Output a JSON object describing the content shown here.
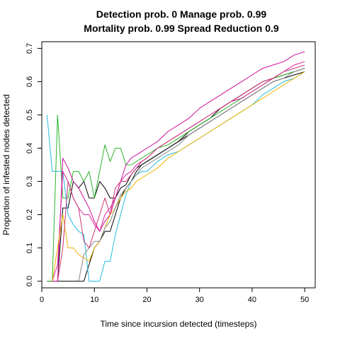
{
  "chart_data": {
    "type": "line",
    "title": [
      "Detection prob. 0 Manage prob. 0.99",
      "Mortality prob. 0.99 Spread Reduction 0.9"
    ],
    "xlabel": "Time since incursion detected (timesteps)",
    "ylabel": "Proportion of infested nodes detected",
    "xlim": [
      0,
      52
    ],
    "ylim": [
      -0.02,
      0.72
    ],
    "xticks": [
      0,
      10,
      20,
      30,
      40,
      50
    ],
    "yticks": [
      0.0,
      0.1,
      0.2,
      0.3,
      0.4,
      0.5,
      0.6,
      0.7
    ],
    "xtick_labels": [
      "0",
      "10",
      "20",
      "30",
      "40",
      "50"
    ],
    "ytick_labels": [
      "0.0",
      "0.1",
      "0.2",
      "0.3",
      "0.4",
      "0.5",
      "0.6",
      "0.7"
    ],
    "grid": false,
    "series": [
      {
        "color": "#000000",
        "x": [
          1,
          2,
          3,
          4,
          5,
          6,
          7,
          8,
          9,
          10,
          11,
          12,
          13,
          14,
          15,
          16,
          17,
          18,
          19,
          20,
          22,
          24,
          26,
          28,
          30,
          32,
          34,
          36,
          38,
          40,
          42,
          44,
          46,
          48,
          50
        ],
        "y": [
          0,
          0,
          0,
          0.22,
          0.22,
          0.3,
          0.28,
          0.3,
          0.25,
          0.25,
          0.3,
          0.28,
          0.25,
          0.25,
          0.28,
          0.29,
          0.32,
          0.34,
          0.35,
          0.36,
          0.38,
          0.4,
          0.42,
          0.44,
          0.46,
          0.48,
          0.5,
          0.52,
          0.54,
          0.56,
          0.58,
          0.6,
          0.61,
          0.62,
          0.63
        ]
      },
      {
        "color": "#000000",
        "x": [
          3,
          4,
          5,
          6,
          7,
          8,
          9,
          10,
          11,
          12,
          13,
          14,
          15,
          16,
          17,
          18,
          19,
          20,
          22,
          24,
          26,
          28,
          30,
          32,
          34,
          36,
          38,
          40,
          42,
          44,
          46,
          48,
          50
        ],
        "y": [
          0,
          0,
          0,
          0,
          0,
          0,
          0.05,
          0.1,
          0.12,
          0.15,
          0.15,
          0.2,
          0.25,
          0.28,
          0.3,
          0.33,
          0.35,
          0.36,
          0.38,
          0.4,
          0.42,
          0.45,
          0.47,
          0.49,
          0.52,
          0.54,
          0.56,
          0.58,
          0.6,
          0.61,
          0.62,
          0.63,
          0.64
        ]
      },
      {
        "color": "#2ab52a",
        "x": [
          1,
          2,
          3,
          4,
          5,
          6,
          7,
          8,
          9,
          10,
          11,
          12,
          13,
          14,
          15,
          16,
          17,
          18,
          19,
          20,
          22,
          24,
          26,
          28,
          30,
          32,
          34,
          36,
          38,
          40,
          42,
          44,
          46,
          48,
          50
        ],
        "y": [
          0,
          0,
          0.5,
          0.25,
          0.25,
          0.33,
          0.33,
          0.3,
          0.33,
          0.25,
          0.33,
          0.41,
          0.36,
          0.4,
          0.4,
          0.35,
          0.35,
          0.36,
          0.37,
          0.38,
          0.4,
          0.41,
          0.43,
          0.45,
          0.47,
          0.49,
          0.51,
          0.53,
          0.55,
          0.57,
          0.59,
          0.61,
          0.62,
          0.63,
          0.64
        ]
      },
      {
        "color": "#22bbdd",
        "x": [
          1,
          2,
          3,
          4,
          5,
          6,
          7,
          8,
          9,
          10,
          11,
          12,
          13,
          14,
          15,
          16,
          17,
          18,
          19,
          20,
          22,
          24,
          26,
          28,
          30,
          32,
          34,
          36,
          38,
          40,
          42,
          44,
          46,
          48,
          50
        ],
        "y": [
          0.5,
          0.33,
          0.33,
          0.33,
          0.2,
          0.17,
          0.15,
          0.14,
          0,
          0,
          0,
          0.06,
          0.06,
          0.14,
          0.2,
          0.26,
          0.3,
          0.32,
          0.33,
          0.33,
          0.36,
          0.38,
          0.39,
          0.41,
          0.43,
          0.45,
          0.47,
          0.49,
          0.51,
          0.53,
          0.56,
          0.58,
          0.6,
          0.61,
          0.63
        ]
      },
      {
        "color": "#dd2299",
        "x": [
          2,
          3,
          4,
          5,
          6,
          7,
          8,
          9,
          10,
          11,
          12,
          13,
          14,
          15,
          16,
          17,
          18,
          19,
          20,
          22,
          24,
          26,
          28,
          30,
          32,
          34,
          36,
          38,
          40,
          42,
          44,
          46,
          48,
          50
        ],
        "y": [
          0,
          0.05,
          0.33,
          0.3,
          0.25,
          0.22,
          0.2,
          0.2,
          0.17,
          0.15,
          0.2,
          0.22,
          0.25,
          0.3,
          0.32,
          0.33,
          0.35,
          0.36,
          0.37,
          0.4,
          0.42,
          0.44,
          0.46,
          0.48,
          0.5,
          0.52,
          0.54,
          0.55,
          0.57,
          0.59,
          0.61,
          0.63,
          0.65,
          0.66
        ]
      },
      {
        "color": "#cc1199",
        "x": [
          2,
          3,
          4,
          5,
          6,
          7,
          8,
          9,
          10,
          11,
          12,
          13,
          14,
          15,
          16,
          17,
          18,
          19,
          20,
          22,
          24,
          26,
          28,
          30,
          32,
          34,
          36,
          38,
          40,
          42,
          44,
          46,
          48,
          50
        ],
        "y": [
          0,
          0,
          0.37,
          0.34,
          0.3,
          0.28,
          0.25,
          0.22,
          0.18,
          0.15,
          0.18,
          0.2,
          0.25,
          0.3,
          0.35,
          0.37,
          0.38,
          0.39,
          0.4,
          0.42,
          0.45,
          0.47,
          0.49,
          0.52,
          0.54,
          0.56,
          0.58,
          0.6,
          0.62,
          0.64,
          0.65,
          0.66,
          0.68,
          0.69
        ]
      },
      {
        "color": "#f0b400",
        "x": [
          2,
          3,
          4,
          5,
          6,
          7,
          8,
          9,
          10,
          11,
          12,
          13,
          14,
          15,
          16,
          17,
          18,
          19,
          20,
          22,
          24,
          26,
          28,
          30,
          32,
          34,
          36,
          38,
          40,
          42,
          44,
          46,
          48,
          50
        ],
        "y": [
          0,
          0.1,
          0.2,
          0.1,
          0.1,
          0.08,
          0.07,
          0.06,
          0.1,
          0.12,
          0.16,
          0.2,
          0.22,
          0.25,
          0.27,
          0.28,
          0.3,
          0.31,
          0.32,
          0.34,
          0.37,
          0.39,
          0.41,
          0.43,
          0.45,
          0.47,
          0.49,
          0.51,
          0.53,
          0.55,
          0.57,
          0.59,
          0.61,
          0.63
        ]
      },
      {
        "color": "#888888",
        "x": [
          7,
          8,
          9,
          10,
          11,
          12,
          13,
          14,
          15,
          16,
          17,
          18,
          19,
          20,
          22,
          24,
          26,
          28,
          30,
          32,
          34,
          36,
          38,
          40,
          42,
          44,
          46,
          48,
          50
        ],
        "y": [
          0,
          0.08,
          0.1,
          0.12,
          0.12,
          0.16,
          0.18,
          0.22,
          0.26,
          0.28,
          0.3,
          0.32,
          0.34,
          0.35,
          0.37,
          0.39,
          0.41,
          0.44,
          0.46,
          0.48,
          0.5,
          0.52,
          0.54,
          0.56,
          0.58,
          0.6,
          0.61,
          0.63,
          0.64
        ]
      },
      {
        "color": "#cc3377",
        "x": [
          3,
          4,
          5,
          6,
          7,
          8,
          9,
          10,
          11,
          12,
          13,
          14,
          15,
          16,
          17,
          18,
          19,
          20,
          22,
          24,
          26,
          28,
          30,
          32,
          34,
          36,
          38,
          40,
          42,
          44,
          46,
          48,
          50
        ],
        "y": [
          0,
          0.1,
          0.3,
          0.25,
          0.22,
          0.12,
          0.1,
          0.15,
          0.2,
          0.25,
          0.2,
          0.28,
          0.3,
          0.3,
          0.32,
          0.34,
          0.36,
          0.37,
          0.4,
          0.42,
          0.44,
          0.46,
          0.48,
          0.5,
          0.52,
          0.54,
          0.56,
          0.58,
          0.6,
          0.61,
          0.63,
          0.64,
          0.65
        ]
      }
    ]
  }
}
